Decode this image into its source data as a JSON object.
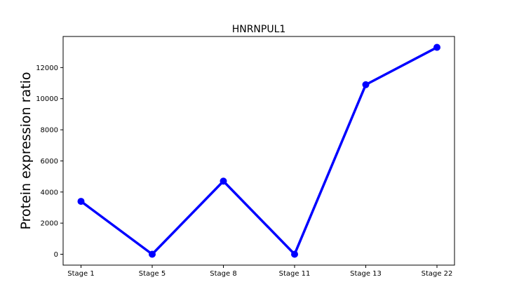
{
  "chart_data": {
    "type": "line",
    "title": "HNRNPUL1",
    "xlabel": "",
    "ylabel": "Protein expression ratio",
    "categories": [
      "Stage 1",
      "Stage 5",
      "Stage 8",
      "Stage 11",
      "Stage 13",
      "Stage 22"
    ],
    "series": [
      {
        "values": [
          3400,
          0,
          4700,
          0,
          10900,
          13300
        ]
      }
    ],
    "ylim": [
      -700,
      14000
    ],
    "yticks": [
      0,
      2000,
      4000,
      6000,
      8000,
      10000,
      12000
    ],
    "ytick_labels": [
      "0",
      "2000",
      "4000",
      "6000",
      "8000",
      "10000",
      "12000"
    ],
    "grid": false,
    "legend": "none",
    "line_color": "#0000ff",
    "marker": "circle"
  }
}
